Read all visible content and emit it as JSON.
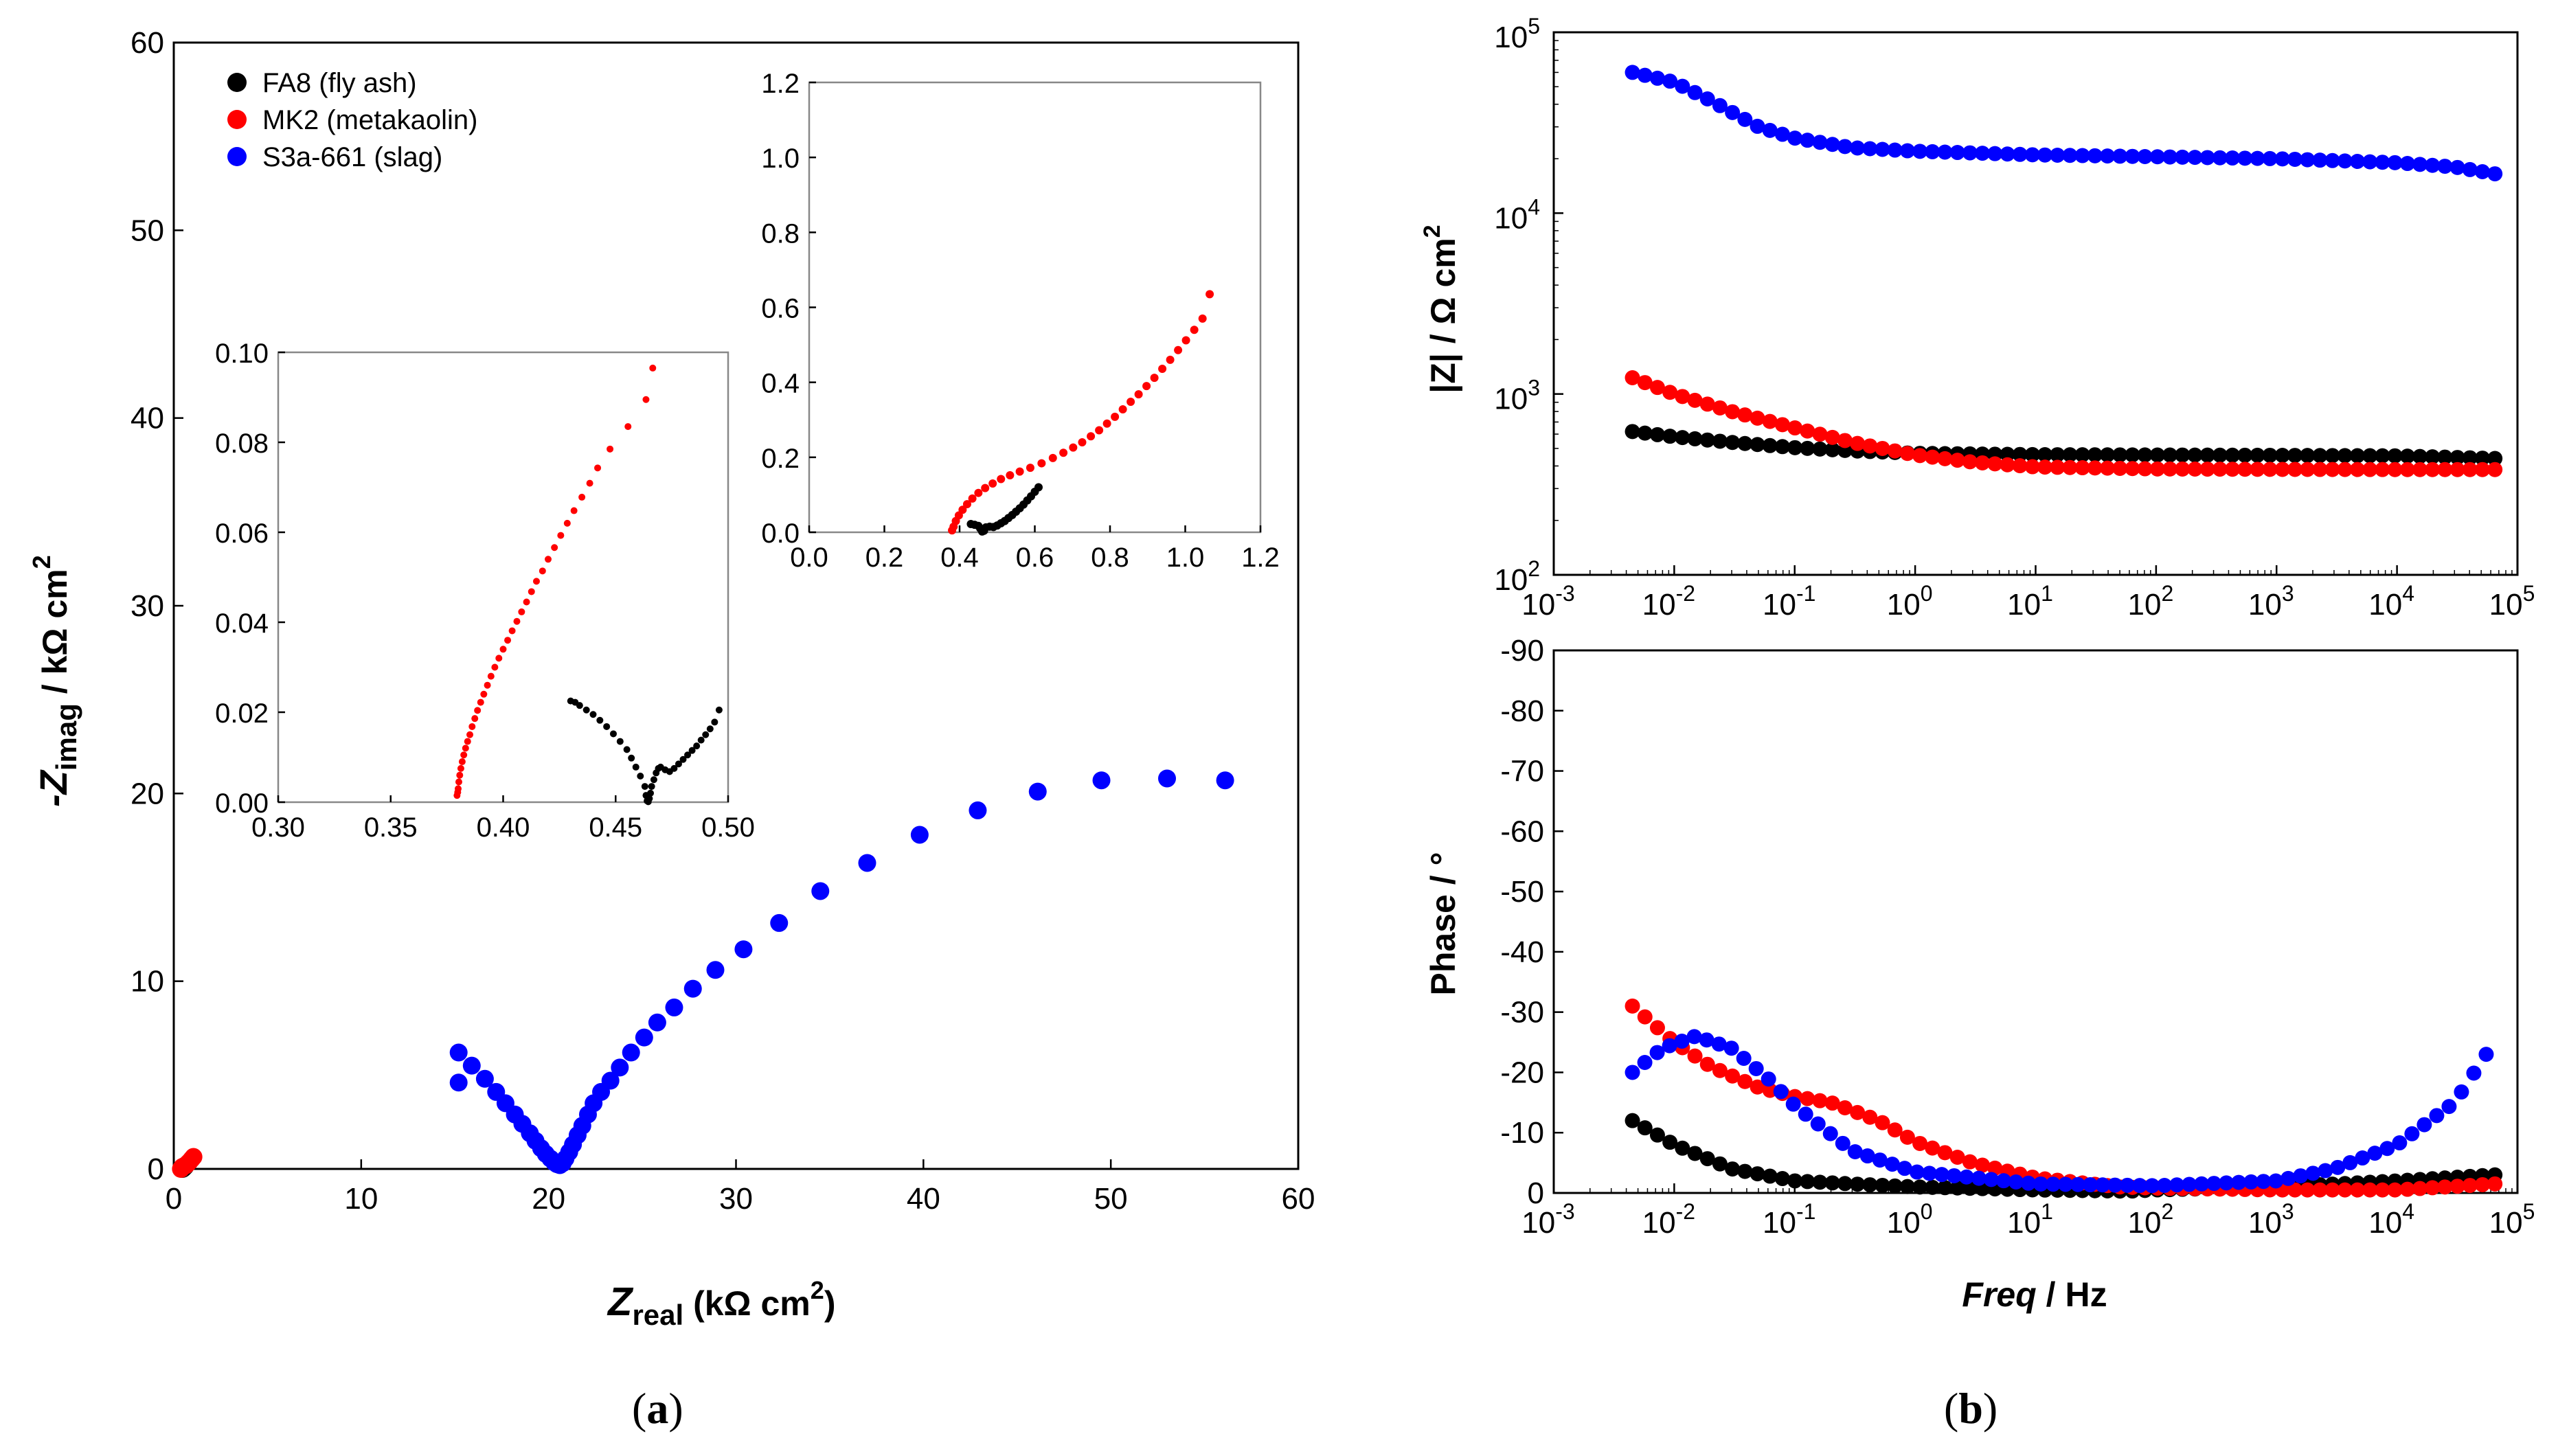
{
  "figure": {
    "panel_a_label": {
      "open": "(",
      "letter": "a",
      "close": ")"
    },
    "panel_b_label": {
      "open": "(",
      "letter": "b",
      "close": ")"
    }
  },
  "series": [
    {
      "key": "fa8",
      "label": "FA8 (fly ash)",
      "color": "#000000"
    },
    {
      "key": "mk2",
      "label": "MK2 (metakaolin)",
      "color": "#ff0000"
    },
    {
      "key": "s3a",
      "label": "S3a-661 (slag)",
      "color": "#0000ff"
    }
  ],
  "axis_text": {
    "nyquist_x": {
      "prefix": "Z",
      "sub": "real",
      "unit": " (kΩ cm",
      "sup": "2",
      "close": ")"
    },
    "nyquist_y": {
      "prefix": "-Z",
      "sub": "imag",
      "unit": " / kΩ cm",
      "sup": "2"
    },
    "bode_mag_y": {
      "main": "|Z| / Ω cm",
      "sup": "2"
    },
    "bode_phase_y": "Phase / °",
    "bode_x": {
      "var": "Freq",
      "unit": " / Hz"
    }
  },
  "chart_data": [
    {
      "id": "nyquist-main",
      "type": "scatter",
      "title": "",
      "xlabel": "Zreal (kΩ cm2)",
      "ylabel": "-Zimag / kΩ cm2",
      "xlim": [
        0,
        60
      ],
      "ylim": [
        0,
        60
      ],
      "xticks": [
        0,
        10,
        20,
        30,
        40,
        50,
        60
      ],
      "yticks": [
        0,
        10,
        20,
        30,
        40,
        50,
        60
      ],
      "legend_position": "top-left",
      "series": [
        {
          "name": "FA8 (fly ash)",
          "x": [
            0.43,
            0.46,
            0.5,
            0.55,
            0.6
          ],
          "y": [
            0.02,
            0.0,
            0.02,
            0.07,
            0.12
          ]
        },
        {
          "name": "MK2 (metakaolin)",
          "x": [
            0.38,
            0.45,
            0.55,
            0.65,
            0.75,
            0.85,
            0.95,
            1.05
          ],
          "y": [
            0.0,
            0.1,
            0.15,
            0.2,
            0.3,
            0.4,
            0.52,
            0.64
          ]
        },
        {
          "name": "S3a-661 (slag)",
          "x": [
            15.2,
            15.2,
            15.9,
            16.6,
            17.2,
            17.7,
            18.2,
            18.6,
            19.0,
            19.3,
            19.6,
            19.85,
            20.1,
            20.3,
            20.45,
            20.6,
            20.75,
            20.9,
            21.1,
            21.3,
            21.55,
            21.8,
            22.1,
            22.4,
            22.8,
            23.3,
            23.8,
            24.4,
            25.1,
            25.8,
            26.7,
            27.7,
            28.9,
            30.4,
            32.3,
            34.5,
            37.0,
            39.8,
            42.9,
            46.1,
            49.5,
            53.0,
            56.1
          ],
          "y": [
            6.2,
            4.6,
            5.5,
            4.8,
            4.1,
            3.5,
            2.9,
            2.4,
            1.9,
            1.5,
            1.1,
            0.8,
            0.55,
            0.35,
            0.25,
            0.2,
            0.3,
            0.55,
            0.9,
            1.3,
            1.8,
            2.3,
            2.9,
            3.5,
            4.1,
            4.7,
            5.4,
            6.2,
            7.0,
            7.8,
            8.6,
            9.6,
            10.6,
            11.7,
            13.1,
            14.8,
            16.3,
            17.8,
            19.1,
            20.1,
            20.7,
            20.8,
            20.7
          ]
        }
      ]
    },
    {
      "id": "nyquist-inset-large",
      "type": "scatter",
      "xlim": [
        0,
        1.2
      ],
      "ylim": [
        0,
        1.2
      ],
      "xticks": [
        0.0,
        0.2,
        0.4,
        0.6,
        0.8,
        1.0,
        1.2
      ],
      "yticks": [
        0.0,
        0.2,
        0.4,
        0.6,
        0.8,
        1.0,
        1.2
      ],
      "series": [
        {
          "name": "FA8 (fly ash)",
          "x": [
            0.43,
            0.44,
            0.45,
            0.455,
            0.46,
            0.465,
            0.47,
            0.48,
            0.49,
            0.5,
            0.51,
            0.52,
            0.53,
            0.54,
            0.55,
            0.56,
            0.57,
            0.58,
            0.59,
            0.6,
            0.61
          ],
          "y": [
            0.022,
            0.02,
            0.017,
            0.01,
            0.002,
            0.004,
            0.013,
            0.015,
            0.014,
            0.018,
            0.024,
            0.03,
            0.038,
            0.046,
            0.055,
            0.064,
            0.074,
            0.085,
            0.096,
            0.108,
            0.12
          ]
        },
        {
          "name": "MK2 (metakaolin)",
          "x": [
            0.38,
            0.384,
            0.39,
            0.398,
            0.408,
            0.42,
            0.434,
            0.45,
            0.468,
            0.488,
            0.51,
            0.534,
            0.56,
            0.588,
            0.618,
            0.648,
            0.676,
            0.702,
            0.726,
            0.749,
            0.771,
            0.792,
            0.813,
            0.834,
            0.855,
            0.876,
            0.897,
            0.918,
            0.939,
            0.96,
            0.981,
            1.002,
            1.024,
            1.046,
            1.065
          ],
          "y": [
            0.005,
            0.015,
            0.03,
            0.045,
            0.06,
            0.075,
            0.09,
            0.105,
            0.118,
            0.13,
            0.142,
            0.152,
            0.162,
            0.172,
            0.184,
            0.198,
            0.212,
            0.226,
            0.24,
            0.256,
            0.272,
            0.29,
            0.308,
            0.328,
            0.348,
            0.368,
            0.39,
            0.412,
            0.436,
            0.46,
            0.486,
            0.512,
            0.54,
            0.57,
            0.635
          ]
        }
      ]
    },
    {
      "id": "nyquist-inset-small",
      "type": "scatter",
      "xlim": [
        0.3,
        0.5
      ],
      "ylim": [
        0.0,
        0.1
      ],
      "xticks": [
        0.3,
        0.35,
        0.4,
        0.45,
        0.5
      ],
      "yticks": [
        0.0,
        0.02,
        0.04,
        0.06,
        0.08,
        0.1
      ],
      "series": [
        {
          "name": "FA8 (fly ash)",
          "x": [
            0.43,
            0.432,
            0.434,
            0.437,
            0.44,
            0.443,
            0.446,
            0.449,
            0.452,
            0.455,
            0.457,
            0.459,
            0.461,
            0.463,
            0.4635,
            0.464,
            0.4645,
            0.465,
            0.4655,
            0.466,
            0.467,
            0.468,
            0.469,
            0.47,
            0.472,
            0.474,
            0.476,
            0.478,
            0.48,
            0.482,
            0.484,
            0.486,
            0.488,
            0.49,
            0.492,
            0.494,
            0.496
          ],
          "y": [
            0.0225,
            0.0222,
            0.0215,
            0.0205,
            0.0195,
            0.0182,
            0.0168,
            0.0152,
            0.0135,
            0.0117,
            0.0098,
            0.0078,
            0.0058,
            0.0035,
            0.0015,
            0.0003,
            0.0001,
            0.0008,
            0.002,
            0.0035,
            0.005,
            0.0065,
            0.0075,
            0.0078,
            0.0072,
            0.0068,
            0.0075,
            0.0085,
            0.0095,
            0.0105,
            0.0115,
            0.0125,
            0.0138,
            0.015,
            0.0163,
            0.0178,
            0.0205
          ]
        },
        {
          "name": "MK2 (metakaolin)",
          "x": [
            0.3795,
            0.3798,
            0.38,
            0.3803,
            0.3807,
            0.3812,
            0.3818,
            0.3825,
            0.3833,
            0.3842,
            0.3852,
            0.3862,
            0.3874,
            0.3886,
            0.39,
            0.3914,
            0.393,
            0.3946,
            0.3963,
            0.3981,
            0.4,
            0.402,
            0.404,
            0.4061,
            0.4082,
            0.4104,
            0.4126,
            0.4148,
            0.4175,
            0.42,
            0.4228,
            0.4256,
            0.4285,
            0.4315,
            0.435,
            0.4385,
            0.442,
            0.4475,
            0.4555,
            0.4635,
            0.4665
          ],
          "y": [
            0.0015,
            0.0022,
            0.003,
            0.0045,
            0.006,
            0.0075,
            0.009,
            0.0105,
            0.012,
            0.0135,
            0.015,
            0.0168,
            0.0186,
            0.0204,
            0.0222,
            0.024,
            0.026,
            0.028,
            0.03,
            0.032,
            0.034,
            0.036,
            0.0381,
            0.0402,
            0.0423,
            0.0445,
            0.0468,
            0.0491,
            0.0514,
            0.054,
            0.0566,
            0.0593,
            0.062,
            0.0648,
            0.0678,
            0.0709,
            0.0743,
            0.0785,
            0.0835,
            0.0895,
            0.0965
          ]
        }
      ]
    },
    {
      "id": "bode-magnitude",
      "type": "scatter",
      "xscale": "log",
      "yscale": "log",
      "xlim": [
        0.001,
        100000
      ],
      "ylim": [
        100,
        100000
      ],
      "xticks_exp": [
        -3,
        -2,
        -1,
        0,
        1,
        2,
        3,
        4,
        5
      ],
      "yticks_exp": [
        2,
        3,
        4,
        5
      ],
      "ylabel": "|Z| / Ω cm2",
      "series": [
        {
          "name": "FA8 (fly ash)",
          "x": [
            0.0045,
            0.01,
            0.03,
            0.1,
            0.3,
            1,
            10,
            100,
            1000,
            10000,
            65000
          ],
          "y": [
            620,
            580,
            540,
            505,
            485,
            470,
            462,
            460,
            458,
            455,
            440
          ]
        },
        {
          "name": "MK2 (metakaolin)",
          "x": [
            0.0045,
            0.01,
            0.03,
            0.1,
            0.3,
            1,
            3,
            10,
            100,
            1000,
            10000,
            65000
          ],
          "y": [
            1230,
            1000,
            800,
            650,
            540,
            460,
            420,
            395,
            385,
            383,
            382,
            382
          ]
        },
        {
          "name": "S3a-661 (slag)",
          "x": [
            0.0045,
            0.01,
            0.02,
            0.05,
            0.1,
            0.3,
            1,
            10,
            100,
            1000,
            10000,
            30000,
            65000
          ],
          "y": [
            60000,
            53000,
            42000,
            30000,
            26000,
            23000,
            22000,
            21000,
            20500,
            20000,
            19000,
            18000,
            16500
          ]
        }
      ]
    },
    {
      "id": "bode-phase",
      "type": "scatter",
      "xscale": "log",
      "xlim": [
        0.001,
        100000
      ],
      "ylim": [
        0,
        -90
      ],
      "xticks_exp": [
        -3,
        -2,
        -1,
        0,
        1,
        2,
        3,
        4,
        5
      ],
      "yticks": [
        0,
        -10,
        -20,
        -30,
        -40,
        -50,
        -60,
        -70,
        -80,
        -90
      ],
      "xlabel": "Freq / Hz",
      "ylabel": "Phase / °",
      "series": [
        {
          "name": "FA8 (fly ash)",
          "x": [
            0.0045,
            0.01,
            0.03,
            0.1,
            0.3,
            1,
            10,
            60,
            100,
            1000,
            10000,
            65000
          ],
          "y": [
            -12,
            -8,
            -4,
            -2,
            -1.5,
            -1,
            -0.5,
            -0.3,
            -0.5,
            -1,
            -2,
            -3
          ]
        },
        {
          "name": "MK2 (metakaolin)",
          "x": [
            0.0045,
            0.01,
            0.02,
            0.05,
            0.1,
            0.2,
            0.5,
            1,
            3,
            10,
            50,
            100,
            1000,
            10000,
            65000
          ],
          "y": [
            -31,
            -25,
            -21,
            -17.5,
            -16,
            -15,
            -12,
            -8.5,
            -5,
            -2.5,
            -1,
            -0.8,
            -0.5,
            -0.5,
            -1.5
          ]
        },
        {
          "name": "S3a-661 (slag)",
          "x": [
            0.0045,
            0.008,
            0.015,
            0.03,
            0.06,
            0.1,
            0.3,
            1,
            10,
            100,
            1000,
            3000,
            10000,
            30000,
            55000
          ],
          "y": [
            -20,
            -24,
            -26,
            -24,
            -19,
            -14.5,
            -7,
            -3.5,
            -1.5,
            -1.2,
            -2,
            -4,
            -8,
            -15,
            -23
          ]
        }
      ]
    }
  ]
}
